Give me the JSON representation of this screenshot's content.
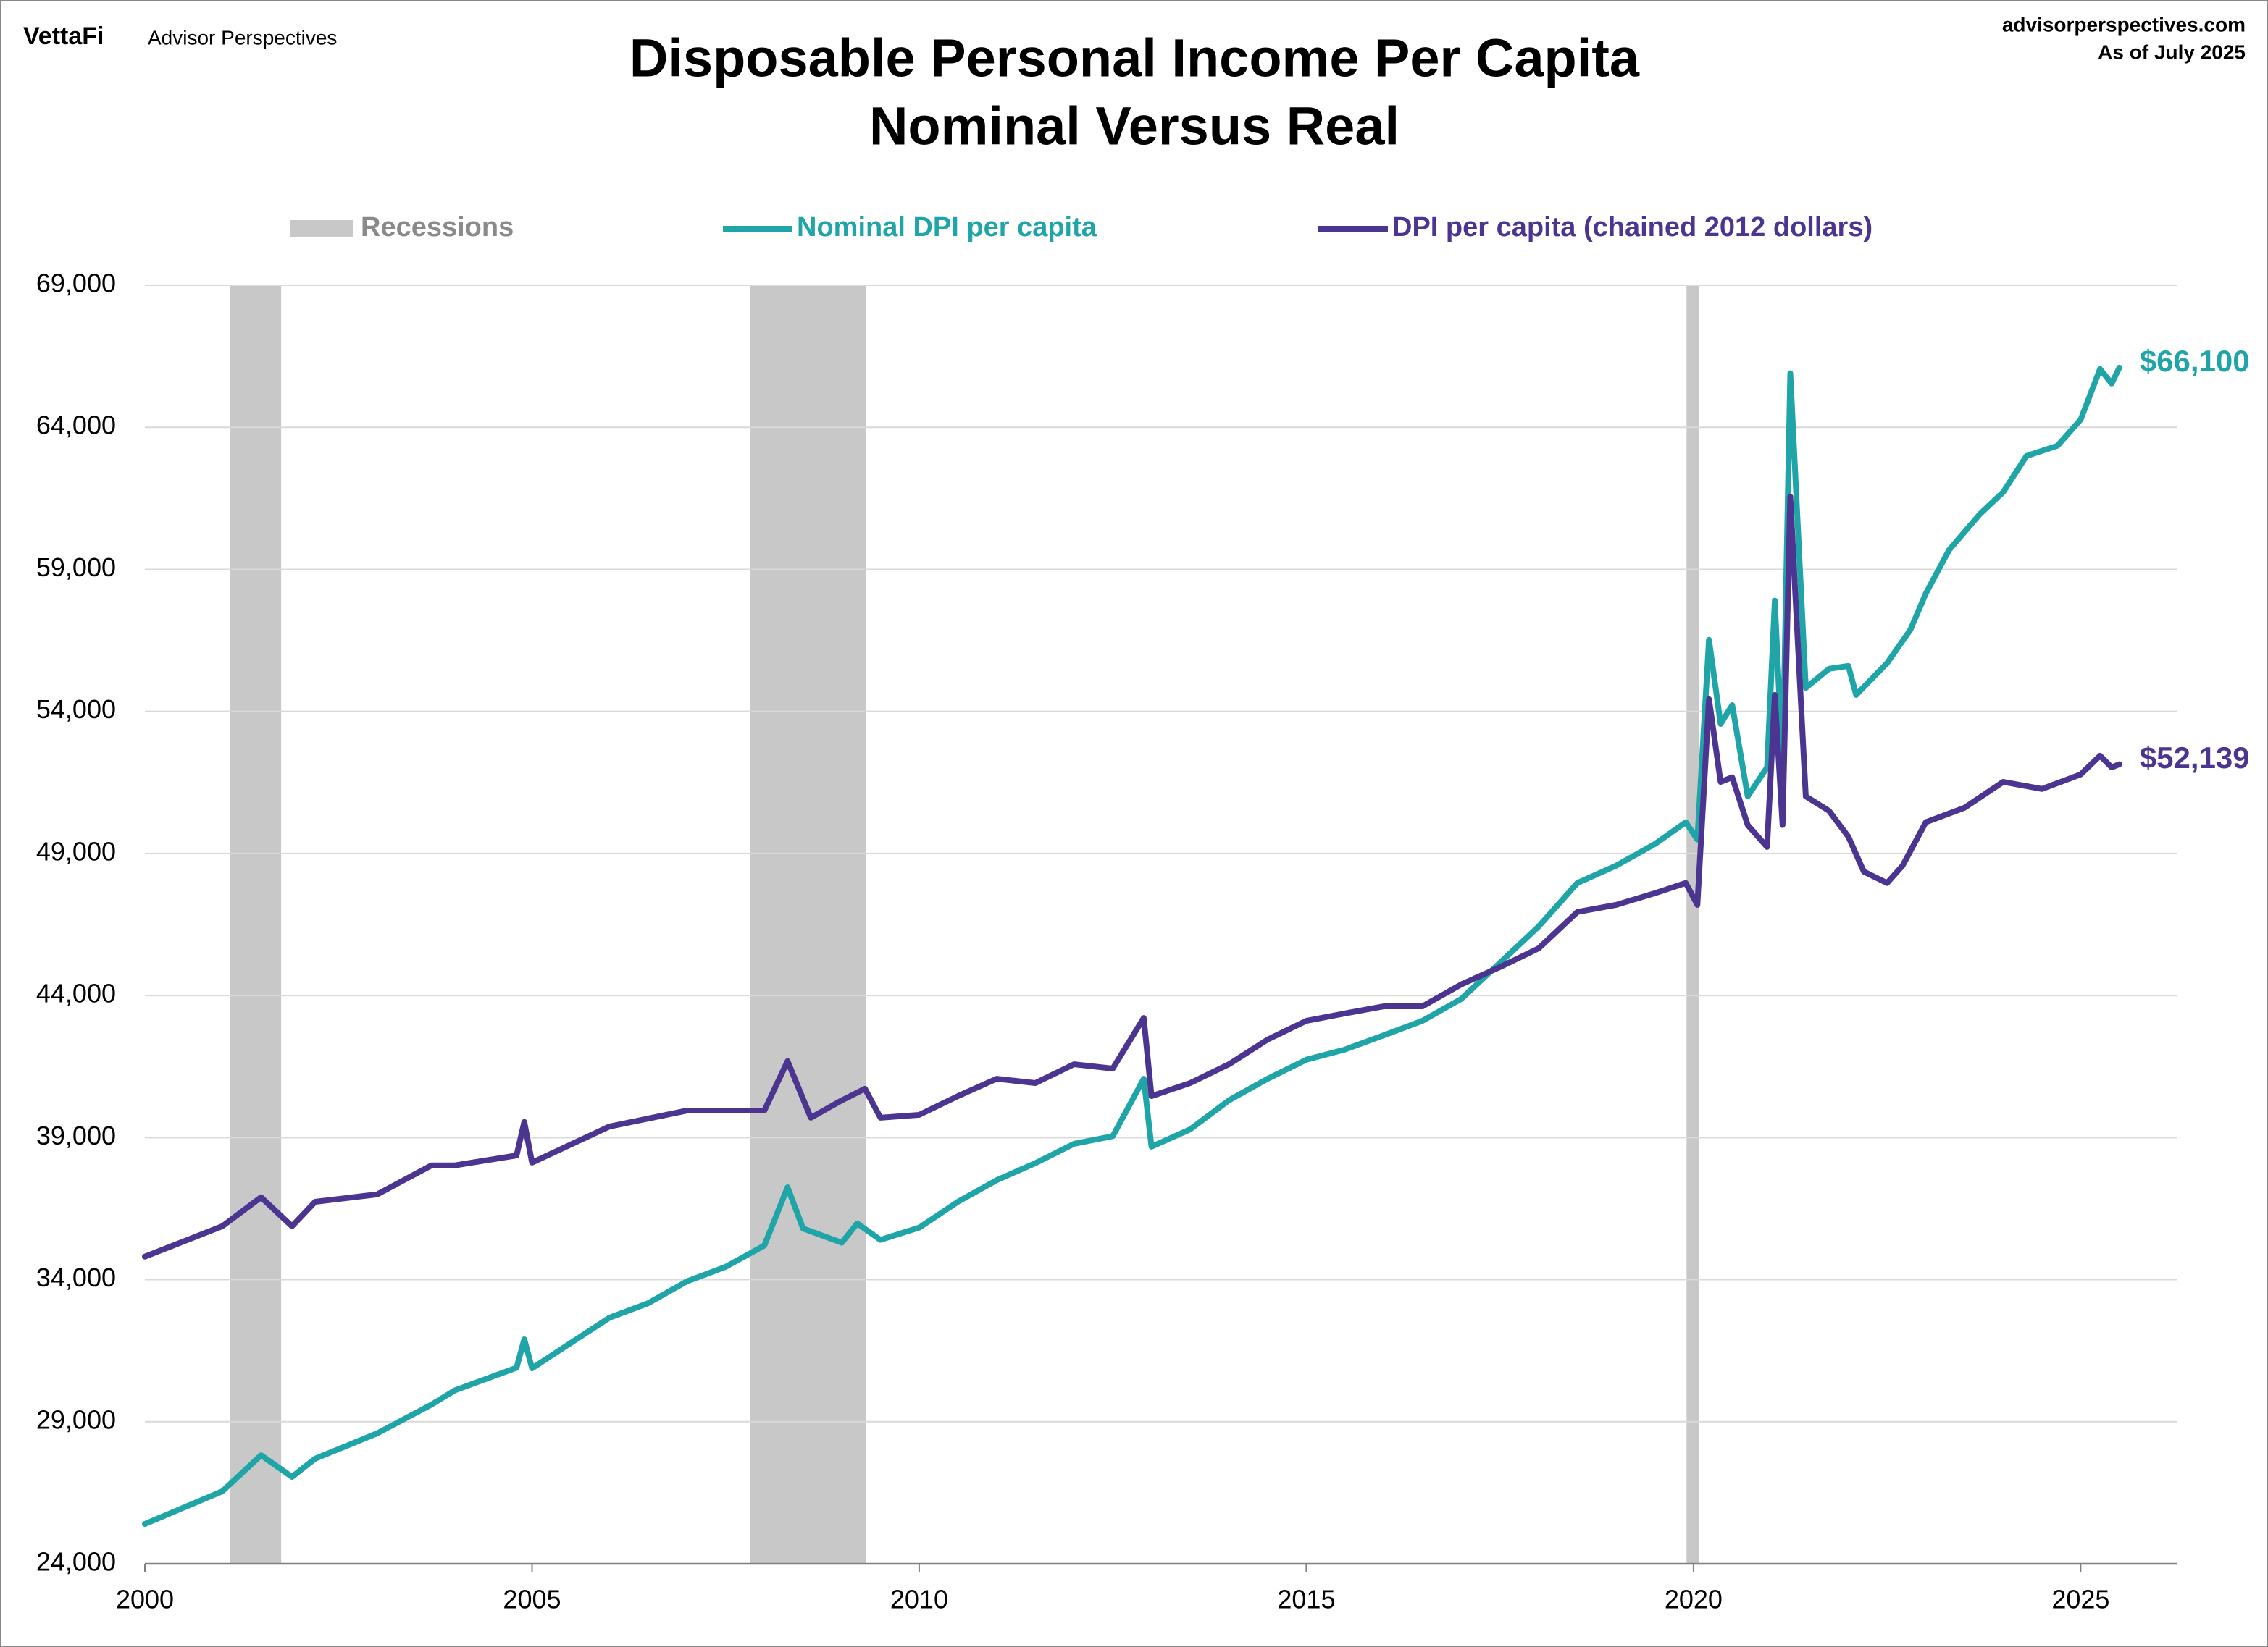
{
  "header": {
    "brand": "VettaFi",
    "publisher": "Advisor Perspectives",
    "site": "advisorperspectives.com",
    "as_of": "As of July 2025"
  },
  "chart_data": {
    "type": "line",
    "title": "Disposable Personal Income Per Capita",
    "subtitle": "Nominal Versus Real",
    "xlim": [
      2000,
      2026.25
    ],
    "xticks": [
      2000,
      2005,
      2010,
      2015,
      2020,
      2025
    ],
    "ylim": [
      24000,
      69000
    ],
    "yticks": [
      {
        "value": 24000,
        "label": "24,000"
      },
      {
        "value": 29000,
        "label": "29,000"
      },
      {
        "value": 34000,
        "label": "34,000"
      },
      {
        "value": 39000,
        "label": "39,000"
      },
      {
        "value": 44000,
        "label": "44,000"
      },
      {
        "value": 49000,
        "label": "49,000"
      },
      {
        "value": 54000,
        "label": "54,000"
      },
      {
        "value": 59000,
        "label": "59,000"
      },
      {
        "value": 64000,
        "label": "64,000"
      },
      {
        "value": 69000,
        "label": "69,000"
      }
    ],
    "grid": true,
    "recessions": {
      "name": "Recessions",
      "color": "#c8c8c8",
      "periods": [
        [
          2001.1,
          2001.76
        ],
        [
          2007.82,
          2009.31
        ],
        [
          2019.91,
          2020.07
        ]
      ]
    },
    "series": [
      {
        "name": "Nominal DPI per capita",
        "color": "#1fa5a8",
        "last_label": "$66,100",
        "x": [
          2000,
          2001,
          2001.5,
          2001.9,
          2002.2,
          2003,
          2003.7,
          2004,
          2004.8,
          2004.9,
          2005,
          2006,
          2006.5,
          2007,
          2007.5,
          2008,
          2008.3,
          2008.5,
          2009,
          2009.2,
          2009.5,
          2010,
          2010.5,
          2011,
          2011.5,
          2012,
          2012.5,
          2012.9,
          2013,
          2013.5,
          2014,
          2014.5,
          2015,
          2015.5,
          2016,
          2016.5,
          2017,
          2017.5,
          2018,
          2018.5,
          2019,
          2019.5,
          2019.9,
          2020.05,
          2020.2,
          2020.35,
          2020.5,
          2020.7,
          2020.95,
          2021.05,
          2021.15,
          2021.25,
          2021.45,
          2021.75,
          2022,
          2022.1,
          2022.5,
          2022.8,
          2023,
          2023.3,
          2023.7,
          2024,
          2024.3,
          2024.7,
          2025,
          2025.25,
          2025.4,
          2025.5
        ],
        "values": [
          25400,
          26550,
          27820,
          27060,
          27700,
          28590,
          29600,
          30100,
          30900,
          31900,
          30880,
          32660,
          33170,
          33940,
          34450,
          35200,
          37250,
          35800,
          35300,
          35980,
          35400,
          35830,
          36740,
          37500,
          38100,
          38780,
          39050,
          41070,
          38680,
          39290,
          40310,
          41070,
          41740,
          42100,
          42600,
          43110,
          43880,
          45150,
          46430,
          47960,
          48570,
          49330,
          50100,
          49490,
          56520,
          53560,
          54220,
          51010,
          52030,
          57900,
          52030,
          65900,
          54830,
          55500,
          55600,
          54580,
          55700,
          56870,
          58150,
          59680,
          60950,
          61720,
          62990,
          63350,
          64270,
          66050,
          65540,
          66100
        ]
      },
      {
        "name": "DPI per capita (chained 2012 dollars)",
        "color": "#4b3590",
        "last_label": "$52,139",
        "x": [
          2000,
          2001,
          2001.5,
          2001.9,
          2002.2,
          2003,
          2003.7,
          2004,
          2004.8,
          2004.9,
          2005,
          2006,
          2007,
          2008,
          2008.3,
          2008.6,
          2009,
          2009.3,
          2009.5,
          2010,
          2010.5,
          2011,
          2011.5,
          2012,
          2012.5,
          2012.9,
          2013,
          2013.5,
          2014,
          2014.5,
          2015,
          2015.5,
          2016,
          2016.5,
          2017,
          2017.5,
          2018,
          2018.5,
          2019,
          2019.5,
          2019.9,
          2020.05,
          2020.2,
          2020.35,
          2020.5,
          2020.7,
          2020.95,
          2021.05,
          2021.15,
          2021.25,
          2021.45,
          2021.75,
          2022,
          2022.2,
          2022.5,
          2022.7,
          2023,
          2023.5,
          2024,
          2024.5,
          2025,
          2025.25,
          2025.4,
          2025.5
        ],
        "values": [
          34810,
          35880,
          36900,
          35880,
          36740,
          37000,
          38020,
          38020,
          38370,
          39550,
          38120,
          39390,
          39950,
          39950,
          41690,
          39700,
          40310,
          40720,
          39700,
          39800,
          40460,
          41070,
          40920,
          41580,
          41430,
          43210,
          40460,
          40920,
          41580,
          42450,
          43110,
          43370,
          43620,
          43620,
          44390,
          45000,
          45660,
          46940,
          47190,
          47600,
          47960,
          47190,
          54430,
          51520,
          51680,
          50000,
          49230,
          54580,
          50000,
          61560,
          51010,
          50500,
          49590,
          48360,
          47960,
          48570,
          50100,
          50610,
          51520,
          51270,
          51780,
          52440,
          52030,
          52139
        ]
      }
    ]
  }
}
